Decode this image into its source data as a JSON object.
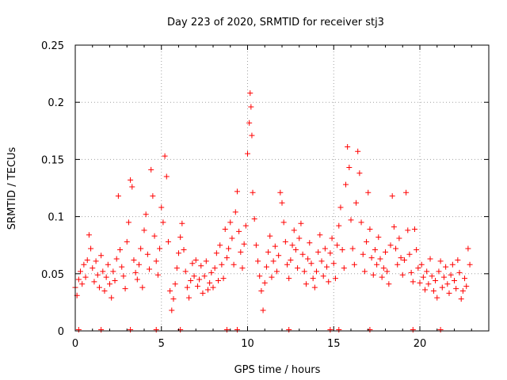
{
  "chart_data": {
    "type": "scatter",
    "title": "Day 223 of 2020, SRMTID for receiver stj3",
    "xlabel": "GPS time / hours",
    "ylabel": "SRMTID / TECUs",
    "xlim": [
      0,
      24
    ],
    "ylim": [
      0,
      0.25
    ],
    "xticks": [
      0,
      5,
      10,
      15,
      20
    ],
    "xtick_labels": [
      "0",
      "5",
      "10",
      "15",
      "20"
    ],
    "yticks": [
      0,
      0.05,
      0.1,
      0.15,
      0.2,
      0.25
    ],
    "ytick_labels": [
      "0",
      "0.05",
      "0.1",
      "0.15",
      "0.2",
      "0.25"
    ],
    "grid": true,
    "marker": "+",
    "color": "#ff0000",
    "series": [
      {
        "name": "SRMTID",
        "points": [
          [
            0.0,
            0.038
          ],
          [
            0.1,
            0.031
          ],
          [
            0.2,
            0.045
          ],
          [
            0.3,
            0.052
          ],
          [
            0.4,
            0.041
          ],
          [
            0.5,
            0.058
          ],
          [
            0.6,
            0.047
          ],
          [
            0.7,
            0.062
          ],
          [
            0.8,
            0.084
          ],
          [
            0.9,
            0.072
          ],
          [
            1.0,
            0.055
          ],
          [
            1.1,
            0.043
          ],
          [
            1.2,
            0.061
          ],
          [
            1.3,
            0.049
          ],
          [
            1.4,
            0.038
          ],
          [
            1.5,
            0.066
          ],
          [
            1.6,
            0.052
          ],
          [
            1.7,
            0.035
          ],
          [
            1.8,
            0.047
          ],
          [
            1.9,
            0.058
          ],
          [
            2.0,
            0.041
          ],
          [
            2.1,
            0.029
          ],
          [
            2.2,
            0.052
          ],
          [
            2.3,
            0.044
          ],
          [
            2.4,
            0.063
          ],
          [
            2.5,
            0.118
          ],
          [
            2.6,
            0.071
          ],
          [
            2.7,
            0.056
          ],
          [
            2.8,
            0.048
          ],
          [
            2.9,
            0.037
          ],
          [
            3.0,
            0.078
          ],
          [
            3.1,
            0.095
          ],
          [
            3.2,
            0.132
          ],
          [
            3.3,
            0.126
          ],
          [
            3.4,
            0.062
          ],
          [
            3.5,
            0.051
          ],
          [
            3.6,
            0.045
          ],
          [
            3.7,
            0.058
          ],
          [
            3.8,
            0.072
          ],
          [
            3.9,
            0.038
          ],
          [
            4.0,
            0.088
          ],
          [
            4.1,
            0.102
          ],
          [
            4.2,
            0.067
          ],
          [
            4.3,
            0.054
          ],
          [
            4.4,
            0.141
          ],
          [
            4.5,
            0.118
          ],
          [
            4.6,
            0.083
          ],
          [
            4.7,
            0.061
          ],
          [
            4.8,
            0.049
          ],
          [
            4.9,
            0.072
          ],
          [
            5.0,
            0.108
          ],
          [
            5.1,
            0.095
          ],
          [
            5.2,
            0.153
          ],
          [
            5.3,
            0.135
          ],
          [
            5.4,
            0.078
          ],
          [
            5.5,
            0.035
          ],
          [
            5.6,
            0.018
          ],
          [
            5.7,
            0.028
          ],
          [
            5.8,
            0.041
          ],
          [
            5.9,
            0.055
          ],
          [
            6.0,
            0.068
          ],
          [
            6.1,
            0.082
          ],
          [
            6.2,
            0.094
          ],
          [
            6.3,
            0.071
          ],
          [
            6.4,
            0.052
          ],
          [
            6.5,
            0.038
          ],
          [
            6.6,
            0.029
          ],
          [
            6.7,
            0.044
          ],
          [
            6.8,
            0.059
          ],
          [
            6.9,
            0.048
          ],
          [
            7.0,
            0.062
          ],
          [
            7.1,
            0.039
          ],
          [
            7.2,
            0.045
          ],
          [
            7.3,
            0.057
          ],
          [
            7.4,
            0.033
          ],
          [
            7.5,
            0.048
          ],
          [
            7.6,
            0.061
          ],
          [
            7.7,
            0.036
          ],
          [
            7.8,
            0.042
          ],
          [
            7.9,
            0.051
          ],
          [
            8.0,
            0.038
          ],
          [
            8.1,
            0.055
          ],
          [
            8.2,
            0.068
          ],
          [
            8.3,
            0.044
          ],
          [
            8.4,
            0.075
          ],
          [
            8.5,
            0.058
          ],
          [
            8.6,
            0.046
          ],
          [
            8.7,
            0.089
          ],
          [
            8.8,
            0.064
          ],
          [
            8.9,
            0.072
          ],
          [
            9.0,
            0.095
          ],
          [
            9.1,
            0.081
          ],
          [
            9.2,
            0.058
          ],
          [
            9.3,
            0.104
          ],
          [
            9.4,
            0.122
          ],
          [
            9.5,
            0.087
          ],
          [
            9.6,
            0.069
          ],
          [
            9.7,
            0.055
          ],
          [
            9.8,
            0.076
          ],
          [
            9.9,
            0.092
          ],
          [
            10.0,
            0.155
          ],
          [
            10.1,
            0.182
          ],
          [
            10.15,
            0.208
          ],
          [
            10.2,
            0.196
          ],
          [
            10.25,
            0.171
          ],
          [
            10.3,
            0.121
          ],
          [
            10.4,
            0.098
          ],
          [
            10.5,
            0.075
          ],
          [
            10.6,
            0.061
          ],
          [
            10.7,
            0.048
          ],
          [
            10.8,
            0.035
          ],
          [
            10.9,
            0.018
          ],
          [
            11.0,
            0.042
          ],
          [
            11.1,
            0.056
          ],
          [
            11.2,
            0.069
          ],
          [
            11.3,
            0.083
          ],
          [
            11.4,
            0.047
          ],
          [
            11.5,
            0.061
          ],
          [
            11.6,
            0.074
          ],
          [
            11.7,
            0.052
          ],
          [
            11.8,
            0.066
          ],
          [
            11.9,
            0.121
          ],
          [
            12.0,
            0.112
          ],
          [
            12.1,
            0.095
          ],
          [
            12.2,
            0.078
          ],
          [
            12.3,
            0.058
          ],
          [
            12.4,
            0.046
          ],
          [
            12.5,
            0.062
          ],
          [
            12.6,
            0.075
          ],
          [
            12.7,
            0.088
          ],
          [
            12.8,
            0.071
          ],
          [
            12.9,
            0.055
          ],
          [
            13.0,
            0.081
          ],
          [
            13.1,
            0.094
          ],
          [
            13.2,
            0.067
          ],
          [
            13.3,
            0.052
          ],
          [
            13.4,
            0.041
          ],
          [
            13.5,
            0.063
          ],
          [
            13.6,
            0.077
          ],
          [
            13.7,
            0.059
          ],
          [
            13.8,
            0.046
          ],
          [
            13.9,
            0.038
          ],
          [
            14.0,
            0.052
          ],
          [
            14.1,
            0.069
          ],
          [
            14.2,
            0.084
          ],
          [
            14.3,
            0.061
          ],
          [
            14.4,
            0.048
          ],
          [
            14.5,
            0.072
          ],
          [
            14.6,
            0.056
          ],
          [
            14.7,
            0.043
          ],
          [
            14.8,
            0.068
          ],
          [
            14.9,
            0.081
          ],
          [
            15.0,
            0.059
          ],
          [
            15.1,
            0.046
          ],
          [
            15.2,
            0.075
          ],
          [
            15.3,
            0.092
          ],
          [
            15.4,
            0.108
          ],
          [
            15.5,
            0.071
          ],
          [
            15.6,
            0.055
          ],
          [
            15.7,
            0.128
          ],
          [
            15.8,
            0.161
          ],
          [
            15.9,
            0.143
          ],
          [
            16.0,
            0.097
          ],
          [
            16.1,
            0.072
          ],
          [
            16.2,
            0.058
          ],
          [
            16.3,
            0.112
          ],
          [
            16.4,
            0.157
          ],
          [
            16.5,
            0.138
          ],
          [
            16.6,
            0.095
          ],
          [
            16.7,
            0.067
          ],
          [
            16.8,
            0.052
          ],
          [
            16.9,
            0.078
          ],
          [
            17.0,
            0.121
          ],
          [
            17.1,
            0.089
          ],
          [
            17.2,
            0.064
          ],
          [
            17.3,
            0.049
          ],
          [
            17.4,
            0.071
          ],
          [
            17.5,
            0.058
          ],
          [
            17.6,
            0.082
          ],
          [
            17.7,
            0.063
          ],
          [
            17.8,
            0.047
          ],
          [
            17.9,
            0.055
          ],
          [
            18.0,
            0.069
          ],
          [
            18.1,
            0.052
          ],
          [
            18.2,
            0.041
          ],
          [
            18.3,
            0.075
          ],
          [
            18.4,
            0.118
          ],
          [
            18.5,
            0.091
          ],
          [
            18.6,
            0.072
          ],
          [
            18.7,
            0.058
          ],
          [
            18.8,
            0.081
          ],
          [
            18.9,
            0.064
          ],
          [
            19.0,
            0.049
          ],
          [
            19.1,
            0.062
          ],
          [
            19.2,
            0.121
          ],
          [
            19.3,
            0.088
          ],
          [
            19.4,
            0.067
          ],
          [
            19.5,
            0.051
          ],
          [
            19.6,
            0.043
          ],
          [
            19.7,
            0.089
          ],
          [
            19.8,
            0.071
          ],
          [
            19.9,
            0.055
          ],
          [
            20.0,
            0.042
          ],
          [
            20.1,
            0.058
          ],
          [
            20.2,
            0.047
          ],
          [
            20.3,
            0.036
          ],
          [
            20.4,
            0.052
          ],
          [
            20.5,
            0.041
          ],
          [
            20.6,
            0.063
          ],
          [
            20.7,
            0.048
          ],
          [
            20.8,
            0.035
          ],
          [
            20.9,
            0.044
          ],
          [
            21.0,
            0.029
          ],
          [
            21.1,
            0.052
          ],
          [
            21.2,
            0.061
          ],
          [
            21.3,
            0.038
          ],
          [
            21.4,
            0.047
          ],
          [
            21.5,
            0.056
          ],
          [
            21.6,
            0.041
          ],
          [
            21.7,
            0.033
          ],
          [
            21.8,
            0.049
          ],
          [
            21.9,
            0.058
          ],
          [
            22.0,
            0.044
          ],
          [
            22.1,
            0.037
          ],
          [
            22.2,
            0.062
          ],
          [
            22.3,
            0.051
          ],
          [
            22.4,
            0.028
          ],
          [
            22.5,
            0.035
          ],
          [
            22.6,
            0.046
          ],
          [
            22.7,
            0.039
          ],
          [
            22.8,
            0.072
          ],
          [
            22.9,
            0.058
          ],
          [
            0.2,
            0.001
          ],
          [
            1.5,
            0.001
          ],
          [
            3.2,
            0.001
          ],
          [
            4.7,
            0.001
          ],
          [
            6.1,
            0.001
          ],
          [
            8.8,
            0.001
          ],
          [
            9.4,
            0.001
          ],
          [
            12.4,
            0.001
          ],
          [
            14.8,
            0.001
          ],
          [
            15.3,
            0.001
          ],
          [
            17.1,
            0.001
          ],
          [
            19.6,
            0.001
          ],
          [
            21.2,
            0.001
          ]
        ]
      }
    ]
  }
}
